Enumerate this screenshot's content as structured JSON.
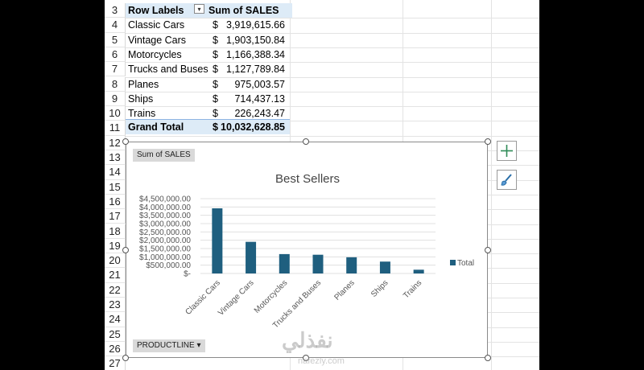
{
  "rows": [
    "3",
    "4",
    "5",
    "6",
    "7",
    "8",
    "9",
    "10",
    "11",
    "12",
    "13",
    "14",
    "15",
    "16",
    "17",
    "18",
    "19",
    "20",
    "21",
    "22",
    "23",
    "24",
    "25",
    "26",
    "27"
  ],
  "pivot": {
    "header_label": "Row Labels",
    "header_value": "Sum of SALES",
    "items": [
      {
        "label": "Classic Cars",
        "currency": "$",
        "value": "3,919,615.66"
      },
      {
        "label": "Vintage Cars",
        "currency": "$",
        "value": "1,903,150.84"
      },
      {
        "label": "Motorcycles",
        "currency": "$",
        "value": "1,166,388.34"
      },
      {
        "label": "Trucks and Buses",
        "currency": "$",
        "value": "1,127,789.84"
      },
      {
        "label": "Planes",
        "currency": "$",
        "value": "975,003.57"
      },
      {
        "label": "Ships",
        "currency": "$",
        "value": "714,437.13"
      },
      {
        "label": "Trains",
        "currency": "$",
        "value": "226,243.47"
      }
    ],
    "total_label": "Grand Total",
    "total_currency": "$",
    "total_value": "10,032,628.85"
  },
  "chart_field_value": "Sum of SALES",
  "chart_field_axis": "PRODUCTLINE",
  "chart_data": {
    "type": "bar",
    "title": "Best Sellers",
    "categories": [
      "Classic Cars",
      "Vintage Cars",
      "Motorcycles",
      "Trucks and Buses",
      "Planes",
      "Ships",
      "Trains"
    ],
    "series": [
      {
        "name": "Total",
        "values": [
          3919615.66,
          1903150.84,
          1166388.34,
          1127789.84,
          975003.57,
          714437.13,
          226243.47
        ]
      }
    ],
    "ylim": [
      0,
      4500000
    ],
    "yticks": [
      "$-",
      "$500,000.00",
      "$1,000,000.00",
      "$1,500,000.00",
      "$2,000,000.00",
      "$2,500,000.00",
      "$3,000,000.00",
      "$3,500,000.00",
      "$4,000,000.00",
      "$4,500,000.00"
    ],
    "grid": true,
    "legend": "right",
    "bar_color": "#1f5f7f"
  },
  "side_buttons": {
    "add_icon": "plus-icon",
    "style_icon": "brush-icon"
  },
  "watermark": {
    "main": "نفذلي",
    "sub": "nafezly.com"
  }
}
